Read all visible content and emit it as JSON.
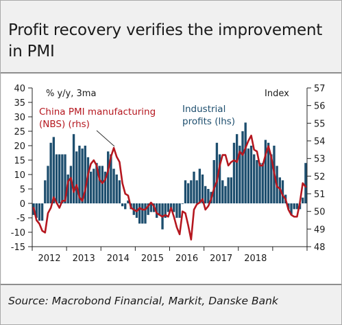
{
  "title": "Profit recovery verifies the improvement in PMI",
  "source": "Source: Macrobond Financial, Markit, Danske Bank",
  "colors": {
    "bars": "#1d4e6e",
    "line": "#b5171f",
    "axis": "#222222"
  },
  "chart_data": {
    "type": "bar+line",
    "left_axis_label": "% y/y, 3ma",
    "right_axis_label": "Index",
    "ylim_left": [
      -15,
      40
    ],
    "ylim_right": [
      48,
      57
    ],
    "left_ticks": [
      40,
      35,
      30,
      25,
      20,
      15,
      10,
      5,
      0,
      -5,
      -10,
      -15
    ],
    "right_ticks": [
      57,
      56,
      55,
      54,
      53,
      52,
      51,
      50,
      49,
      48
    ],
    "x_ticks": [
      "2012",
      "2013",
      "2014",
      "2015",
      "2016",
      "2017",
      "2018"
    ],
    "series": [
      {
        "name": "Industrial profits (lhs)",
        "type": "bar",
        "axis": "left",
        "start": "2012-01",
        "values": [
          -4,
          -5,
          -6,
          -6,
          8,
          13,
          21,
          23,
          17,
          17,
          17,
          17,
          10,
          13,
          24,
          18,
          20,
          19,
          20,
          16,
          11,
          12,
          14,
          13,
          13,
          11,
          18,
          17,
          12,
          10,
          8,
          -1,
          -2,
          1,
          -2,
          -4,
          -5,
          -7,
          -7,
          -7,
          -4,
          -3,
          -3,
          -5,
          -4,
          -9,
          -5,
          -3,
          -2,
          -3,
          -5,
          -5,
          0,
          8,
          7,
          8,
          11,
          8,
          12,
          10,
          6,
          5,
          4,
          15,
          21,
          17,
          8,
          6,
          9,
          9,
          21,
          24,
          20,
          25,
          28,
          19,
          20,
          17,
          15,
          14,
          14,
          22,
          21,
          17,
          20,
          13,
          9,
          8,
          3,
          -2,
          -4,
          -2,
          -2,
          -2,
          2,
          14
        ]
      },
      {
        "name": "China PMI manufacturing (NBS) (rhs)",
        "type": "line",
        "axis": "right",
        "start": "2012-01",
        "values": [
          50.2,
          49.5,
          49.3,
          48.9,
          48.8,
          49.9,
          50.2,
          50.8,
          50.5,
          50.2,
          50.6,
          50.6,
          51.7,
          51.9,
          51.1,
          51.5,
          50.8,
          50.6,
          51.2,
          52.1,
          52.7,
          52.9,
          52.6,
          51.8,
          51.6,
          51.8,
          52.3,
          53.1,
          53.6,
          53.1,
          52.8,
          51.6,
          51.0,
          50.9,
          50.2,
          50.1,
          50.0,
          50.2,
          50.1,
          50.1,
          50.3,
          50.5,
          50.3,
          49.9,
          49.8,
          49.7,
          49.8,
          49.7,
          50.2,
          49.7,
          49.1,
          48.7,
          50.0,
          49.9,
          49.2,
          48.4,
          50.1,
          50.4,
          50.5,
          50.7,
          50.1,
          50.3,
          50.7,
          51.3,
          51.7,
          52.6,
          53.2,
          53.2,
          52.6,
          52.8,
          52.9,
          52.8,
          53.4,
          53.2,
          53.6,
          54.0,
          54.3,
          53.5,
          53.4,
          52.6,
          52.6,
          53.2,
          53.7,
          53.1,
          52.2,
          51.4,
          51.3,
          50.9,
          50.7,
          50.1,
          49.8,
          49.7,
          49.7,
          50.5,
          51.6,
          51.4
        ]
      }
    ],
    "legend": [
      {
        "label": "China PMI manufacturing (NBS) (rhs)",
        "lines": [
          "China PMI manufacturing",
          "(NBS) (rhs)"
        ]
      },
      {
        "label": "Industrial profits (lhs)",
        "lines": [
          "Industrial",
          "profits (lhs)"
        ]
      }
    ]
  }
}
